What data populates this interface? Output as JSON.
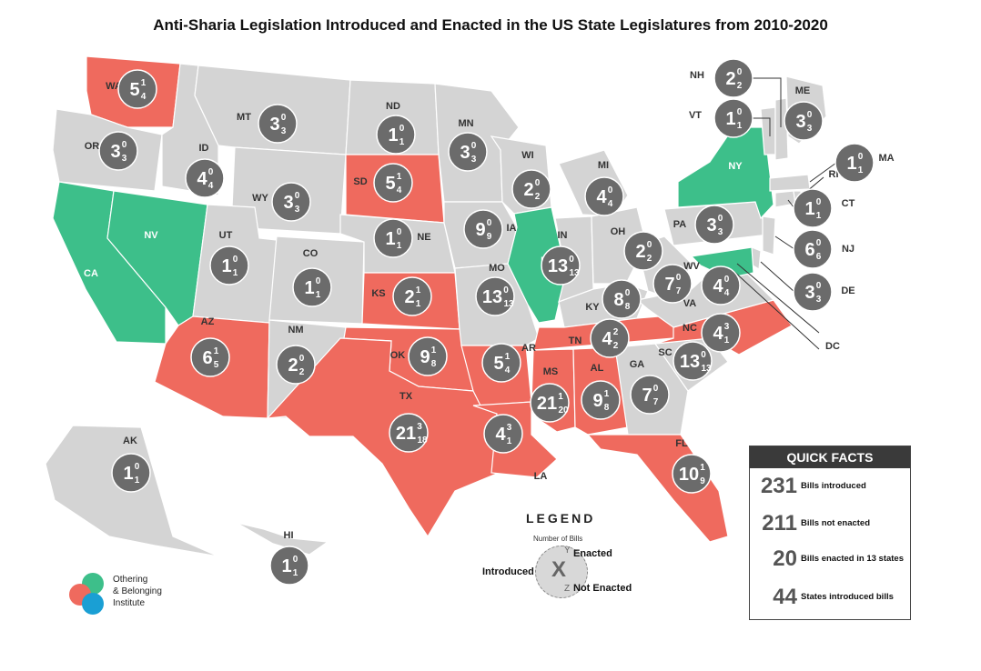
{
  "title": "Anti-Sharia Legislation Introduced and Enacted in the US State Legislatures from 2010-2020",
  "colors": {
    "none": "#d4d4d4",
    "introduced_enacted": "#ef6a5e",
    "enacted_no_bubble": "#3dbf8a",
    "bubble": "#6b6b6b"
  },
  "states": [
    {
      "abbr": "WA",
      "x": "5",
      "y": "1",
      "z": "4",
      "status": "enacted"
    },
    {
      "abbr": "OR",
      "x": "3",
      "y": "0",
      "z": "3",
      "status": "none"
    },
    {
      "abbr": "CA",
      "status": "green"
    },
    {
      "abbr": "NV",
      "status": "green"
    },
    {
      "abbr": "ID",
      "x": "4",
      "y": "0",
      "z": "4",
      "status": "none"
    },
    {
      "abbr": "MT",
      "x": "3",
      "y": "0",
      "z": "3",
      "status": "none"
    },
    {
      "abbr": "WY",
      "x": "3",
      "y": "0",
      "z": "3",
      "status": "none"
    },
    {
      "abbr": "UT",
      "x": "1",
      "y": "0",
      "z": "1",
      "status": "none"
    },
    {
      "abbr": "CO",
      "x": "1",
      "y": "0",
      "z": "1",
      "status": "none"
    },
    {
      "abbr": "AZ",
      "x": "6",
      "y": "1",
      "z": "5",
      "status": "enacted"
    },
    {
      "abbr": "NM",
      "x": "2",
      "y": "0",
      "z": "2",
      "status": "none"
    },
    {
      "abbr": "ND",
      "x": "1",
      "y": "0",
      "z": "1",
      "status": "none"
    },
    {
      "abbr": "SD",
      "x": "5",
      "y": "1",
      "z": "4",
      "status": "enacted"
    },
    {
      "abbr": "NE",
      "x": "1",
      "y": "0",
      "z": "1",
      "status": "none"
    },
    {
      "abbr": "KS",
      "x": "2",
      "y": "1",
      "z": "1",
      "status": "enacted"
    },
    {
      "abbr": "OK",
      "x": "9",
      "y": "1",
      "z": "8",
      "status": "enacted"
    },
    {
      "abbr": "TX",
      "x": "21",
      "y": "3",
      "z": "18",
      "status": "enacted"
    },
    {
      "abbr": "MN",
      "x": "3",
      "y": "0",
      "z": "3",
      "status": "none"
    },
    {
      "abbr": "IA",
      "x": "9",
      "y": "0",
      "z": "9",
      "status": "none"
    },
    {
      "abbr": "MO",
      "x": "13",
      "y": "0",
      "z": "13",
      "status": "none"
    },
    {
      "abbr": "AR",
      "x": "5",
      "y": "1",
      "z": "4",
      "status": "enacted"
    },
    {
      "abbr": "LA",
      "x": "4",
      "y": "3",
      "z": "1",
      "status": "enacted"
    },
    {
      "abbr": "WI",
      "x": "2",
      "y": "0",
      "z": "2",
      "status": "none"
    },
    {
      "abbr": "IL",
      "status": "green"
    },
    {
      "abbr": "MI",
      "x": "4",
      "y": "0",
      "z": "4",
      "status": "none"
    },
    {
      "abbr": "IN",
      "x": "13",
      "y": "0",
      "z": "13",
      "status": "none"
    },
    {
      "abbr": "OH",
      "x": "2",
      "y": "0",
      "z": "2",
      "status": "none"
    },
    {
      "abbr": "KY",
      "x": "8",
      "y": "0",
      "z": "8",
      "status": "none"
    },
    {
      "abbr": "TN",
      "x": "4",
      "y": "2",
      "z": "2",
      "status": "enacted"
    },
    {
      "abbr": "MS",
      "x": "21",
      "y": "1",
      "z": "20",
      "status": "enacted"
    },
    {
      "abbr": "AL",
      "x": "9",
      "y": "1",
      "z": "8",
      "status": "enacted"
    },
    {
      "abbr": "GA",
      "x": "7",
      "y": "0",
      "z": "7",
      "status": "none"
    },
    {
      "abbr": "FL",
      "x": "10",
      "y": "1",
      "z": "9",
      "status": "enacted"
    },
    {
      "abbr": "SC",
      "x": "13",
      "y": "0",
      "z": "13",
      "status": "none"
    },
    {
      "abbr": "NC",
      "x": "4",
      "y": "3",
      "z": "1",
      "status": "enacted"
    },
    {
      "abbr": "VA",
      "x": "7",
      "y": "0",
      "z": "7",
      "status": "none"
    },
    {
      "abbr": "WV",
      "x": "4",
      "y": "0",
      "z": "4",
      "status": "none"
    },
    {
      "abbr": "PA",
      "x": "3",
      "y": "0",
      "z": "3",
      "status": "none"
    },
    {
      "abbr": "NY",
      "status": "green"
    },
    {
      "abbr": "NJ",
      "x": "6",
      "y": "0",
      "z": "6",
      "status": "none"
    },
    {
      "abbr": "DE",
      "x": "3",
      "y": "0",
      "z": "3",
      "status": "none"
    },
    {
      "abbr": "MD",
      "status": "green"
    },
    {
      "abbr": "DC",
      "status": "none"
    },
    {
      "abbr": "CT",
      "x": "1",
      "y": "0",
      "z": "1",
      "status": "none"
    },
    {
      "abbr": "RI",
      "status": "none"
    },
    {
      "abbr": "MA",
      "x": "1",
      "y": "0",
      "z": "1",
      "status": "none"
    },
    {
      "abbr": "VT",
      "x": "1",
      "y": "0",
      "z": "1",
      "status": "none"
    },
    {
      "abbr": "NH",
      "x": "2",
      "y": "0",
      "z": "2",
      "status": "none"
    },
    {
      "abbr": "ME",
      "x": "3",
      "y": "0",
      "z": "3",
      "status": "none"
    },
    {
      "abbr": "AK",
      "x": "1",
      "y": "0",
      "z": "1",
      "status": "none"
    },
    {
      "abbr": "HI",
      "x": "1",
      "y": "0",
      "z": "1",
      "status": "none"
    }
  ],
  "legend": {
    "title": "LEGEND",
    "subtitle": "Number of Bills",
    "x_symbol": "X",
    "y_symbol": "Y",
    "z_symbol": "Z",
    "introduced": "Introduced",
    "enacted": "Enacted",
    "not_enacted": "Not Enacted"
  },
  "quick_facts": {
    "heading": "QUICK FACTS",
    "items": [
      {
        "num": "231",
        "label": "Bills introduced"
      },
      {
        "num": "211",
        "label": "Bills not enacted"
      },
      {
        "num": "20",
        "label": "Bills enacted in 13 states"
      },
      {
        "num": "44",
        "label": "States introduced bills"
      }
    ]
  },
  "logo": {
    "line1": "Othering",
    "line2": "& Belonging",
    "line3": "Institute",
    "colors": [
      "#3dbf8a",
      "#ef6a5e",
      "#1a9fd4",
      "#222222"
    ]
  }
}
